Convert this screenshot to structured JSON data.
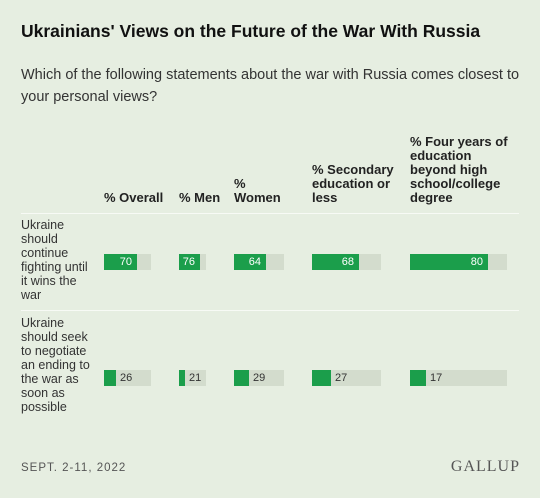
{
  "title": "Ukrainians' Views on the Future of the War With Russia",
  "subtitle": "Which of the following statements about the war with Russia comes closest to your personal views?",
  "chart_data": {
    "type": "bar",
    "columns": [
      "% Overall",
      "% Men",
      "% Women",
      "% Secondary education or less",
      "% Four years of education beyond high school/college degree"
    ],
    "rows": [
      {
        "label": "Ukraine should continue fighting until it wins the war",
        "values": [
          70,
          76,
          64,
          68,
          80
        ]
      },
      {
        "label": "Ukraine should seek to negotiate an ending to the war as soon as possible",
        "values": [
          26,
          21,
          29,
          27,
          17
        ]
      }
    ],
    "ylim": [
      0,
      100
    ],
    "bar_color": "#1b9e4b",
    "track_color": "#d3dccd"
  },
  "footer": {
    "date": "SEPT. 2-11, 2022",
    "source": "GALLUP"
  }
}
